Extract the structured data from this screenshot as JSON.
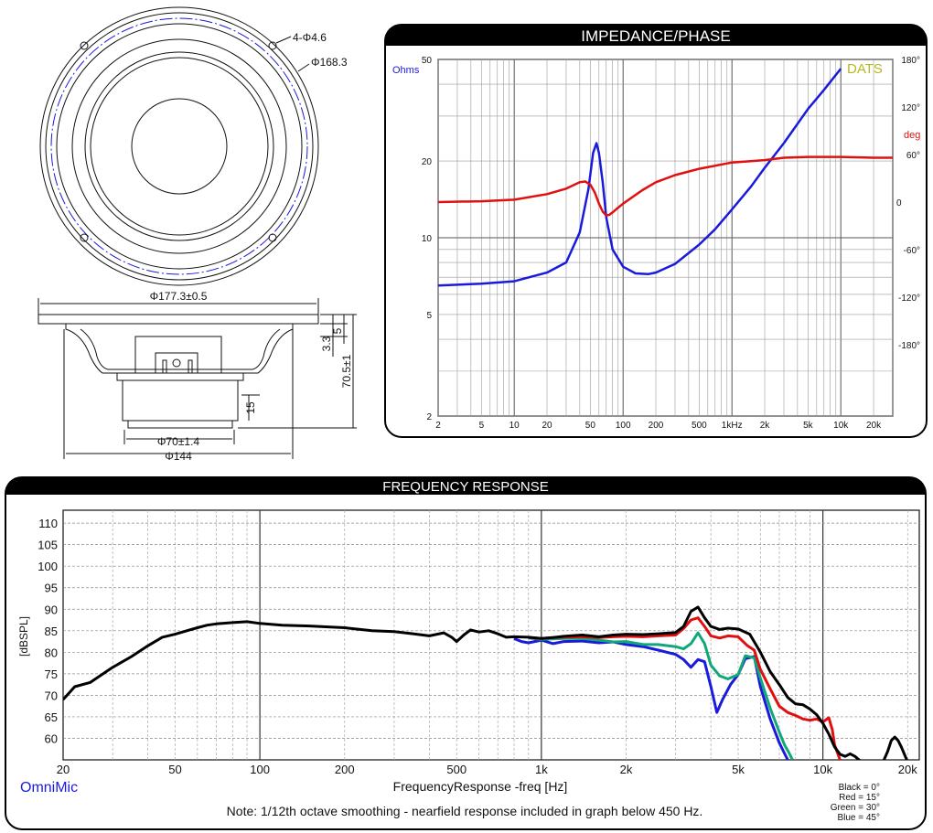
{
  "drawing": {
    "front_labels": [
      "4-Φ4.6",
      "Φ168.3"
    ],
    "side_labels": [
      "Φ177.3±0.5",
      "3.3",
      "5",
      "70.5±1",
      "15",
      "Φ70±1.4",
      "Φ144"
    ]
  },
  "chart_data": [
    {
      "type": "line",
      "title": "IMPEDANCE/PHASE",
      "xscale": "log",
      "xlim": [
        2,
        30000
      ],
      "ylim": [
        2,
        50
      ],
      "yscale": "log",
      "y2lim": [
        -270,
        180
      ],
      "x_ticks": [
        "2",
        "5",
        "10",
        "20",
        "50",
        "100",
        "200",
        "500",
        "1kHz",
        "2k",
        "5k",
        "10k",
        "20k"
      ],
      "x_tick_values": [
        2,
        5,
        10,
        20,
        50,
        100,
        200,
        500,
        1000,
        2000,
        5000,
        10000,
        20000
      ],
      "y_ticks": [
        "2",
        "5",
        "10",
        "20",
        "50"
      ],
      "y_tick_values": [
        2,
        5,
        10,
        20,
        50
      ],
      "y_unit": "Ohms",
      "y2_ticks": [
        "180°",
        "120°",
        "60°",
        "0",
        "-60°",
        "-120°",
        "-180°"
      ],
      "y2_tick_values": [
        180,
        120,
        60,
        0,
        -60,
        -120,
        -180
      ],
      "y2_unit": "deg",
      "brand": "DATS",
      "grid": true,
      "series": [
        {
          "role": "impedance",
          "color": "#1a1adc",
          "x": [
            2,
            5,
            10,
            20,
            30,
            40,
            48,
            53,
            57,
            60,
            65,
            70,
            80,
            100,
            130,
            170,
            200,
            300,
            500,
            700,
            1000,
            1500,
            2000,
            3000,
            5000,
            7000,
            10000
          ],
          "y": [
            6.5,
            6.6,
            6.75,
            7.3,
            8.0,
            10.5,
            15.5,
            21.5,
            23.5,
            21.5,
            16.5,
            12.0,
            9.0,
            7.7,
            7.25,
            7.2,
            7.3,
            7.9,
            9.4,
            10.8,
            12.9,
            15.9,
            18.8,
            23.5,
            32.0,
            38.0,
            46.0
          ]
        },
        {
          "role": "phase",
          "color": "#e01010",
          "x": [
            2,
            5,
            10,
            20,
            30,
            40,
            45,
            50,
            55,
            60,
            65,
            70,
            75,
            80,
            90,
            100,
            150,
            200,
            300,
            500,
            1000,
            2000,
            3000,
            5000,
            10000,
            20000,
            30000
          ],
          "y": [
            0,
            1,
            3,
            10,
            17,
            25,
            26,
            22,
            12,
            -2,
            -12,
            -17,
            -16,
            -13,
            -7,
            -2,
            15,
            25,
            34,
            42,
            50,
            53,
            56,
            57,
            57,
            56,
            56
          ]
        }
      ]
    },
    {
      "type": "line",
      "title": "FREQUENCY RESPONSE",
      "xlabel": "FrequencyResponse -freq [Hz]",
      "ylabel": "[dBSPL]",
      "xscale": "log",
      "xlim": [
        20,
        22000
      ],
      "ylim": [
        55,
        113
      ],
      "x_ticks": [
        "20",
        "50",
        "100",
        "200",
        "500",
        "1k",
        "2k",
        "5k",
        "10k",
        "20k"
      ],
      "x_tick_values": [
        20,
        50,
        100,
        200,
        500,
        1000,
        2000,
        5000,
        10000,
        20000
      ],
      "y_ticks": [
        "60",
        "65",
        "70",
        "75",
        "80",
        "85",
        "90",
        "95",
        "100",
        "105",
        "110"
      ],
      "y_tick_values": [
        60,
        65,
        70,
        75,
        80,
        85,
        90,
        95,
        100,
        105,
        110
      ],
      "grid": true,
      "legend_lines": [
        "Black = 0°",
        "Red = 15°",
        "Green = 30°",
        "Blue = 45°"
      ],
      "brand": "OmniMic",
      "note": "Note: 1/12th octave smoothing - nearfield response included in graph below 450 Hz.",
      "series": [
        {
          "role": "0deg",
          "color": "#000000",
          "x": [
            20,
            22,
            25,
            30,
            35,
            40,
            45,
            50,
            55,
            60,
            65,
            70,
            80,
            90,
            100,
            120,
            150,
            200,
            250,
            300,
            350,
            400,
            450,
            480,
            500,
            530,
            560,
            600,
            650,
            700,
            750,
            800,
            900,
            1000,
            1100,
            1200,
            1400,
            1600,
            1800,
            2000,
            2300,
            2600,
            3000,
            3200,
            3400,
            3600,
            3800,
            4000,
            4300,
            4600,
            5000,
            5500,
            6000,
            6500,
            7000,
            7500,
            8000,
            8500,
            9000,
            9500,
            10000,
            10500,
            11000,
            11500,
            12000,
            12500,
            13000,
            14000,
            15000,
            16000,
            17000,
            17500,
            18000,
            18500,
            19000,
            20000,
            20500
          ],
          "y": [
            69,
            72,
            73,
            76.5,
            79,
            81.5,
            83.5,
            84.2,
            85,
            85.7,
            86.3,
            86.6,
            86.9,
            87.1,
            86.7,
            86.3,
            86.1,
            85.7,
            85,
            84.8,
            84.3,
            83.8,
            84.5,
            83.5,
            82.5,
            84,
            85.2,
            84.7,
            85,
            84.3,
            83.5,
            83.6,
            83.5,
            83.2,
            83.4,
            83.7,
            84,
            83.6,
            84,
            84.2,
            84.1,
            84.3,
            84.6,
            86,
            89.5,
            90.5,
            88,
            86,
            85.3,
            85.6,
            85.4,
            84.2,
            80,
            75.5,
            72.5,
            69.5,
            68,
            67.8,
            66.8,
            65.5,
            63.5,
            61,
            58,
            56.3,
            55.8,
            56.4,
            55.8,
            54,
            54,
            53,
            57,
            59.5,
            60.3,
            59.5,
            58,
            54.5,
            53
          ]
        },
        {
          "role": "15deg",
          "color": "#e01010",
          "x": [
            900,
            1000,
            1100,
            1200,
            1400,
            1600,
            1800,
            2000,
            2300,
            2600,
            3000,
            3200,
            3400,
            3600,
            3800,
            4000,
            4300,
            4600,
            5000,
            5400,
            5700,
            6000,
            6500,
            7000,
            7500,
            8000,
            8500,
            9000,
            9500,
            10000,
            10500,
            10800,
            11000,
            11500
          ],
          "y": [
            83.4,
            83.2,
            83.4,
            83.5,
            83.6,
            83.4,
            83.6,
            83.7,
            83.6,
            83.8,
            84,
            85.5,
            87.5,
            88,
            86,
            83.8,
            83.3,
            83.8,
            83.6,
            81.5,
            80.5,
            76,
            71.5,
            67.5,
            66,
            65.3,
            64.5,
            64.2,
            64.5,
            63.8,
            64.8,
            62,
            58.5,
            55
          ]
        },
        {
          "role": "30deg",
          "color": "#10a878",
          "x": [
            900,
            1000,
            1100,
            1200,
            1400,
            1600,
            1800,
            2000,
            2300,
            2600,
            3000,
            3200,
            3400,
            3600,
            3800,
            4000,
            4300,
            4600,
            5000,
            5300,
            5700,
            6000,
            6500,
            7000,
            7300,
            7600,
            7800
          ],
          "y": [
            83.3,
            83,
            83.1,
            83.2,
            83.2,
            82.8,
            82.4,
            82.5,
            81.8,
            81.8,
            81.3,
            80.8,
            82,
            84.5,
            82,
            77,
            74.5,
            73.8,
            74.8,
            79.2,
            78.7,
            74,
            67,
            61.5,
            58.5,
            56.5,
            55
          ]
        },
        {
          "role": "45deg",
          "color": "#1a1adc",
          "x": [
            800,
            850,
            900,
            1000,
            1100,
            1200,
            1400,
            1600,
            1800,
            2000,
            2300,
            2600,
            3000,
            3200,
            3400,
            3600,
            3800,
            4000,
            4200,
            4400,
            4700,
            5000,
            5300,
            5700,
            6000,
            6500,
            7000,
            7300,
            7500
          ],
          "y": [
            83.2,
            82.5,
            82.2,
            82.8,
            82,
            82.5,
            82.6,
            82.2,
            82.4,
            81.8,
            81.3,
            80.5,
            79.5,
            78.3,
            76.5,
            78.3,
            77.8,
            72,
            66,
            69,
            72.5,
            74.8,
            78.5,
            79,
            72,
            64.5,
            59,
            56.5,
            55
          ]
        }
      ]
    }
  ]
}
